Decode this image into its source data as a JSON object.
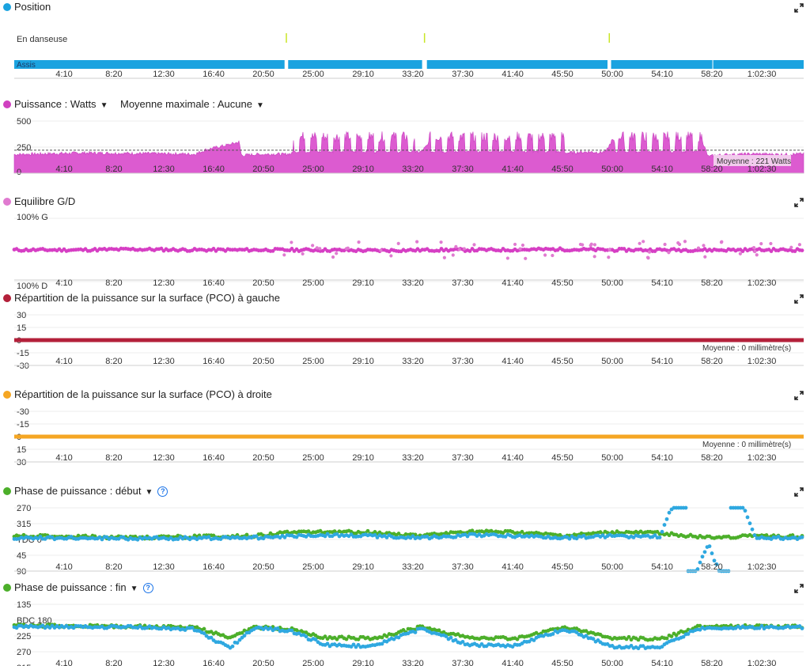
{
  "x_ticks": [
    "4:10",
    "8:20",
    "12:30",
    "16:40",
    "20:50",
    "25:00",
    "29:10",
    "33:20",
    "37:30",
    "41:40",
    "45:50",
    "50:00",
    "54:10",
    "58:20",
    "1:02:30"
  ],
  "panels": {
    "position": {
      "title": "Position",
      "color": "#1aa3e0",
      "upper_label": "En danseuse",
      "lower_label": "Assis"
    },
    "power": {
      "title": "Puissance : Watts",
      "extra": "Moyenne maximale : Aucune",
      "color": "#d040c0",
      "average_label": "Moyenne : 221 Watts",
      "y_ticks": [
        "500",
        "250",
        "0"
      ]
    },
    "balance": {
      "title": "Equilibre G/D",
      "color": "#e07ad0",
      "top_label": "100% G",
      "bottom_label": "100% D"
    },
    "pco_left": {
      "title": "Répartition de la puissance sur la surface (PCO) à gauche",
      "color": "#b3203a",
      "y_ticks": [
        "30",
        "15",
        "0",
        "-15",
        "-30"
      ],
      "average_label": "Moyenne : 0 millimètre(s)"
    },
    "pco_right": {
      "title": "Répartition de la puissance sur la surface (PCO) à droite",
      "color": "#f5a623",
      "y_ticks": [
        "-30",
        "-15",
        "0",
        "15",
        "30"
      ],
      "average_label": "Moyenne : 0 millimètre(s)"
    },
    "phase_start": {
      "title": "Phase de puissance : début",
      "color": "#4caf2a",
      "color2": "#2fa8e0",
      "y_ticks": [
        "270",
        "315",
        "TDC 0",
        "45",
        "90"
      ],
      "help": "?"
    },
    "phase_end": {
      "title": "Phase de puissance : fin",
      "color": "#4caf2a",
      "color2": "#2fa8e0",
      "y_ticks": [
        "135",
        "BDC 180",
        "225",
        "270",
        "315"
      ],
      "help": "?"
    }
  },
  "chart_data": [
    {
      "type": "area",
      "title": "Position",
      "categories": [
        "Assis",
        "En danseuse"
      ],
      "x_unit": "minutes",
      "x_ticks_minutes": [
        4.17,
        8.33,
        12.5,
        16.67,
        20.83,
        25,
        29.17,
        33.33,
        37.5,
        41.67,
        45.83,
        50,
        54.17,
        58.33,
        62.5
      ],
      "series": [
        {
          "name": "Assis",
          "segments_minutes": [
            [
              0,
              22.6
            ],
            [
              22.9,
              34.1
            ],
            [
              34.5,
              49.6
            ],
            [
              49.9,
              66
            ]
          ]
        },
        {
          "name": "En danseuse",
          "segments_minutes": [
            [
              22.6,
              22.9
            ],
            [
              34.1,
              34.5
            ],
            [
              49.6,
              49.9
            ]
          ]
        }
      ],
      "xlim": [
        0,
        66
      ]
    },
    {
      "type": "area",
      "title": "Puissance : Watts",
      "ylim": [
        0,
        500
      ],
      "average": 221,
      "x_unit": "minutes",
      "series": [
        {
          "name": "Puissance",
          "x": [
            0,
            2,
            4,
            6,
            8,
            10,
            12,
            14,
            15,
            15.5,
            16,
            17,
            18,
            18.8,
            19,
            19.5,
            20,
            21,
            22,
            22.5,
            23.3,
            24,
            25,
            26,
            27,
            28,
            29,
            30,
            31,
            32,
            33,
            33.5,
            34,
            35,
            36,
            37,
            38,
            39,
            40,
            41,
            42,
            43,
            44,
            45,
            46,
            47,
            48,
            49,
            49.5,
            50,
            51,
            52,
            53,
            54,
            55,
            56,
            57,
            57.5,
            58,
            59,
            60,
            62,
            64,
            66
          ],
          "values": [
            180,
            185,
            190,
            195,
            192,
            190,
            188,
            185,
            182,
            200,
            225,
            250,
            275,
            300,
            170,
            175,
            180,
            182,
            185,
            180,
            190,
            320,
            200,
            320,
            200,
            320,
            200,
            320,
            200,
            320,
            195,
            200,
            205,
            320,
            200,
            320,
            200,
            320,
            200,
            320,
            200,
            320,
            185,
            190,
            195,
            200,
            205,
            200,
            210,
            320,
            200,
            320,
            200,
            320,
            200,
            320,
            200,
            320,
            160,
            175,
            180,
            185,
            180,
            185
          ]
        }
      ]
    },
    {
      "type": "scatter",
      "title": "Equilibre G/D",
      "ylabel_top": "100% G",
      "ylabel_bottom": "100% D",
      "ylim": [
        0,
        100
      ],
      "typical_value": 50,
      "series": [
        {
          "name": "G/D",
          "x": [
            0,
            5,
            10,
            15,
            20,
            25,
            30,
            35,
            40,
            45,
            50,
            55,
            60,
            65
          ],
          "values": [
            50,
            50,
            51,
            50,
            50,
            50,
            49,
            50,
            50,
            51,
            50,
            50,
            50,
            50
          ]
        }
      ]
    },
    {
      "type": "line",
      "title": "Répartition de la puissance sur la surface (PCO) à gauche",
      "ylim": [
        -30,
        30
      ],
      "average": 0,
      "series": [
        {
          "name": "PCO gauche",
          "x": [
            0,
            66
          ],
          "values": [
            0,
            0
          ]
        }
      ]
    },
    {
      "type": "line",
      "title": "Répartition de la puissance sur la surface (PCO) à droite",
      "ylim": [
        -30,
        30
      ],
      "average": 0,
      "series": [
        {
          "name": "PCO droite",
          "x": [
            0,
            66
          ],
          "values": [
            0,
            0
          ]
        }
      ]
    },
    {
      "type": "scatter",
      "title": "Phase de puissance : début",
      "y_ticks": [
        "270",
        "315",
        "TDC 0",
        "45",
        "90"
      ],
      "series": [
        {
          "name": "début (pic)",
          "x": [
            0,
            5,
            10,
            15,
            20,
            23,
            26,
            30,
            34,
            38,
            42,
            46,
            50,
            54,
            58,
            62,
            66
          ],
          "values": [
            350,
            352,
            355,
            352,
            350,
            340,
            338,
            340,
            350,
            338,
            340,
            350,
            340,
            342,
            355,
            350,
            352
          ]
        },
        {
          "name": "début",
          "x": [
            0,
            5,
            10,
            15,
            20,
            23,
            26,
            30,
            34,
            38,
            42,
            46,
            50,
            54,
            58,
            62,
            66
          ],
          "values": [
            355,
            356,
            357,
            356,
            355,
            350,
            348,
            350,
            355,
            348,
            350,
            355,
            350,
            352,
            12,
            355,
            356
          ]
        }
      ]
    },
    {
      "type": "scatter",
      "title": "Phase de puissance : fin",
      "y_ticks": [
        "135",
        "BDC 180",
        "225",
        "270",
        "315"
      ],
      "series": [
        {
          "name": "fin (pic)",
          "x": [
            0,
            5,
            10,
            15,
            18,
            20,
            23,
            26,
            30,
            34,
            38,
            42,
            46,
            50,
            54,
            57,
            60,
            66
          ],
          "values": [
            195,
            197,
            198,
            200,
            230,
            200,
            205,
            230,
            232,
            200,
            230,
            232,
            200,
            230,
            235,
            200,
            198,
            198
          ]
        },
        {
          "name": "fin",
          "x": [
            0,
            5,
            10,
            15,
            18,
            20,
            23,
            26,
            30,
            34,
            38,
            42,
            46,
            50,
            54,
            57,
            60,
            66
          ],
          "values": [
            198,
            200,
            200,
            205,
            260,
            202,
            210,
            250,
            255,
            205,
            250,
            252,
            205,
            255,
            258,
            205,
            200,
            200
          ]
        }
      ]
    }
  ]
}
